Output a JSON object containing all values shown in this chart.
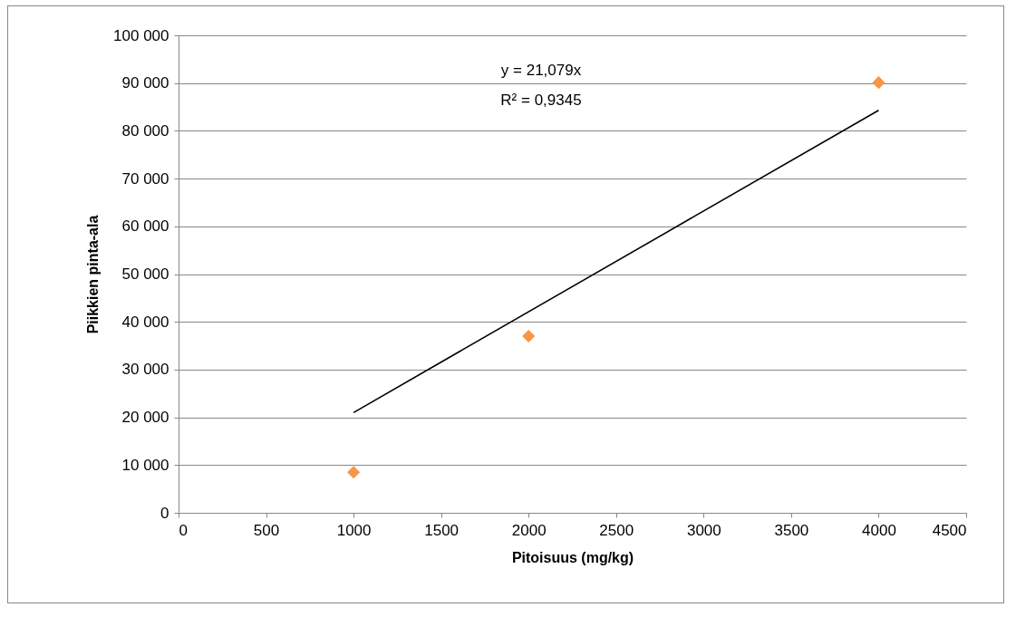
{
  "chart_data": {
    "type": "scatter",
    "xlabel": "Pitoisuus (mg/kg)",
    "ylabel": "Piikkien pinta-ala",
    "x": [
      1000,
      2000,
      4000
    ],
    "series": [
      {
        "color": "#f79646",
        "marker": "diamond",
        "values": [
          8500,
          37000,
          90100
        ]
      },
      {
        "type": "line",
        "color": "#000000",
        "marker": "none",
        "x": [
          1000,
          4000
        ],
        "values": [
          21000,
          84300
        ]
      }
    ],
    "annotations": [
      "y = 21,079x",
      "R² = 0,9345"
    ],
    "xlim": [
      0,
      4500
    ],
    "xticks": [
      0,
      500,
      1000,
      1500,
      2000,
      2500,
      3000,
      3500,
      4000,
      4500
    ],
    "ylim": [
      0,
      100000
    ],
    "yticks": [
      0,
      {
        "value": 10000,
        "label": "10 000"
      },
      {
        "value": 20000,
        "label": "20 000"
      },
      {
        "value": 30000,
        "label": "30 000"
      },
      {
        "value": 40000,
        "label": "40 000"
      },
      {
        "value": 50000,
        "label": "50 000"
      },
      {
        "value": 60000,
        "label": "60 000"
      },
      {
        "value": 70000,
        "label": "70 000"
      },
      {
        "value": 80000,
        "label": "80 000"
      },
      {
        "value": 90000,
        "label": "90 000"
      },
      {
        "value": 100000,
        "label": "100 000"
      }
    ],
    "grid": "y"
  }
}
